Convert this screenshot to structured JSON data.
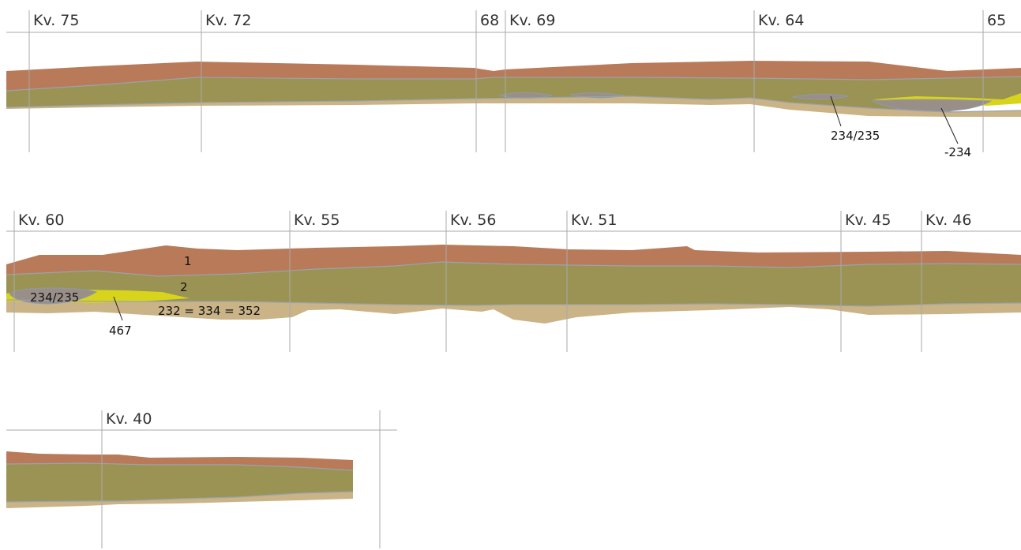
{
  "colors": {
    "layer_1": "#b87a58",
    "layer_2": "#9a9354",
    "subsoil": "#c9b387",
    "pit_fill": "#998f88",
    "yellow_fill": "#d8d41c",
    "grid_line": "#a9a9a9"
  },
  "row_1": {
    "markers": [
      "Kv. 75",
      "Kv. 72",
      "68",
      "Kv. 69",
      "Kv. 64",
      "65"
    ],
    "annotations": [
      "234/235",
      "-234"
    ]
  },
  "row_2": {
    "markers": [
      "Kv. 60",
      "Kv. 55",
      "Kv. 56",
      "Kv. 51",
      "Kv. 45",
      "Kv. 46"
    ],
    "layer_labels": [
      "1",
      "2",
      "232 = 334 = 352"
    ],
    "annotations": [
      "234/235",
      "467"
    ]
  },
  "row_3": {
    "markers": [
      "Kv. 40"
    ]
  }
}
